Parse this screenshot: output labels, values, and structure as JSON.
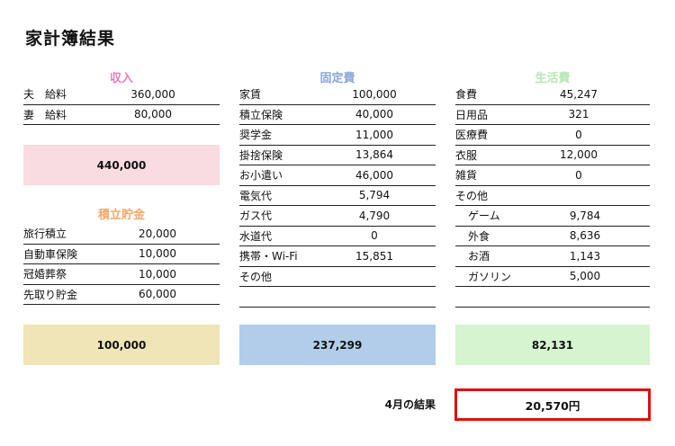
{
  "title": "家計簿結果",
  "income": {
    "title": "収入",
    "title_color": "#f07ab8",
    "rows": [
      {
        "label": "夫　給料",
        "value": "360,000"
      },
      {
        "label": "妻　給料",
        "value": "80,000"
      }
    ],
    "total": "440,000",
    "total_color": "#f9dbe2"
  },
  "savings": {
    "title": "積立貯金",
    "title_color": "#f5a86a",
    "rows": [
      {
        "label": "旅行積立",
        "value": "20,000"
      },
      {
        "label": "自動車保険",
        "value": "10,000"
      },
      {
        "label": "冠婚葬祭",
        "value": "10,000"
      },
      {
        "label": "先取り貯金",
        "value": "60,000"
      }
    ],
    "total": "100,000",
    "total_color": "#efe5b6"
  },
  "fixed": {
    "title": "固定費",
    "title_color": "#8aa6d8",
    "rows": [
      {
        "label": "家賃",
        "value": "100,000"
      },
      {
        "label": "積立保険",
        "value": "40,000"
      },
      {
        "label": "奨学金",
        "value": "11,000"
      },
      {
        "label": "掛捨保険",
        "value": "13,864"
      },
      {
        "label": "お小遣い",
        "value": "46,000"
      },
      {
        "label": "電気代",
        "value": "5,794"
      },
      {
        "label": "ガス代",
        "value": "4,790"
      },
      {
        "label": "水道代",
        "value": "0"
      },
      {
        "label": "携帯・Wi-Fi",
        "value": "15,851"
      },
      {
        "label": "その他",
        "value": ""
      },
      {
        "label": "",
        "value": ""
      }
    ],
    "total": "237,299",
    "total_color": "#b1cde9"
  },
  "living": {
    "title": "生活費",
    "title_color": "#b6e6b2",
    "rows": [
      {
        "label": "食費",
        "value": "45,247"
      },
      {
        "label": "日用品",
        "value": "321"
      },
      {
        "label": "医療費",
        "value": "0"
      },
      {
        "label": "衣服",
        "value": "12,000"
      },
      {
        "label": "雑貨",
        "value": "0"
      },
      {
        "label": "その他",
        "value": ""
      },
      {
        "label": "ゲーム",
        "value": "9,784",
        "indent": true
      },
      {
        "label": "外食",
        "value": "8,636",
        "indent": true
      },
      {
        "label": "お酒",
        "value": "1,143",
        "indent": true
      },
      {
        "label": "ガソリン",
        "value": "5,000",
        "indent": true
      },
      {
        "label": "",
        "value": ""
      }
    ],
    "total": "82,131",
    "total_color": "#d5f4cf"
  },
  "result": {
    "label": "4月の結果",
    "value": "20,570円",
    "border_color": "#e01010"
  }
}
